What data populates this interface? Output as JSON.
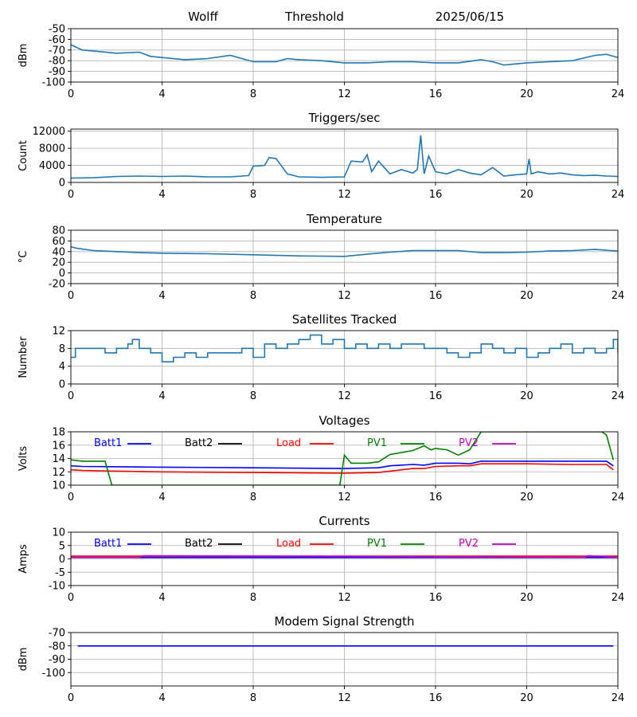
{
  "header": {
    "station": "Wolff",
    "mode": "Threshold",
    "date": "2025/06/15"
  },
  "colors": {
    "default_series": "#1f77b4",
    "batt1": "#0000ff",
    "batt2": "#000000",
    "load": "#ff0000",
    "pv1": "#008000",
    "pv2": "#c000c0",
    "modem": "#0000ff"
  },
  "chart_data": [
    {
      "type": "line",
      "title": "",
      "ylabel": "dBm",
      "xlim": [
        0,
        24
      ],
      "ylim": [
        -100,
        -50
      ],
      "xticks": [
        "0",
        "4",
        "8",
        "12",
        "16",
        "20",
        "24"
      ],
      "yticks": [
        "-50",
        "-60",
        "-70",
        "-80",
        "-90",
        "-100"
      ],
      "grid": true,
      "series": [
        {
          "color": "#1f77b4",
          "x": [
            0,
            0.5,
            1,
            2,
            3,
            3.5,
            4,
            5,
            6,
            7,
            7.5,
            8,
            9,
            9.5,
            10,
            11,
            12,
            13,
            14,
            15,
            16,
            17,
            18,
            18.5,
            19,
            20,
            21,
            22,
            23,
            23.5,
            24
          ],
          "y": [
            -65,
            -70,
            -71,
            -73,
            -72,
            -76,
            -77,
            -79,
            -78,
            -75,
            -78,
            -81,
            -81,
            -78,
            -79,
            -80,
            -82,
            -82,
            -81,
            -81,
            -82,
            -82,
            -79,
            -81,
            -84,
            -82,
            -81,
            -80,
            -75,
            -74,
            -77
          ]
        }
      ]
    },
    {
      "type": "line",
      "title": "Triggers/sec",
      "ylabel": "Count",
      "xlim": [
        0,
        24
      ],
      "ylim": [
        0,
        12500
      ],
      "xticks": [
        "0",
        "4",
        "8",
        "12",
        "16",
        "20",
        "24"
      ],
      "yticks": [
        "0",
        "4000",
        "8000",
        "12000"
      ],
      "grid": true,
      "series": [
        {
          "color": "#1f77b4",
          "x": [
            0,
            1,
            2,
            3,
            4,
            5,
            6,
            7,
            7.8,
            8,
            8.5,
            8.7,
            9,
            9.5,
            10,
            11,
            12,
            12.3,
            12.8,
            13,
            13.2,
            13.5,
            14,
            14.5,
            15,
            15.2,
            15.35,
            15.5,
            15.7,
            16,
            16.5,
            17,
            17.5,
            18,
            18.5,
            19,
            19.5,
            20,
            20.1,
            20.2,
            20.5,
            21,
            21.5,
            22,
            22.5,
            23,
            23.5,
            24
          ],
          "y": [
            1000,
            1100,
            1400,
            1500,
            1400,
            1500,
            1300,
            1300,
            1600,
            3800,
            4000,
            5800,
            5600,
            2000,
            1300,
            1200,
            1300,
            5000,
            4800,
            6500,
            2500,
            5000,
            2000,
            3000,
            2200,
            3000,
            11000,
            2000,
            6200,
            2500,
            2000,
            3000,
            2200,
            1800,
            3500,
            1500,
            1800,
            2000,
            5500,
            2000,
            2500,
            2000,
            2200,
            1800,
            1600,
            1700,
            1500,
            1400
          ]
        }
      ]
    },
    {
      "type": "line",
      "title": "Temperature",
      "ylabel": "°C",
      "xlim": [
        0,
        24
      ],
      "ylim": [
        -20,
        80
      ],
      "xticks": [
        "0",
        "4",
        "8",
        "12",
        "16",
        "20",
        "24"
      ],
      "yticks": [
        "-20",
        "0",
        "20",
        "40",
        "60",
        "80"
      ],
      "grid": true,
      "series": [
        {
          "color": "#1f77b4",
          "x": [
            0,
            0.3,
            1,
            2,
            3,
            4,
            6,
            8,
            10,
            12,
            13,
            14,
            15,
            16,
            17,
            18,
            19,
            20,
            21,
            22,
            23,
            24
          ],
          "y": [
            49,
            46,
            42,
            40,
            38,
            37,
            36,
            34,
            32,
            31,
            35,
            39,
            42,
            42,
            42,
            38,
            38,
            39,
            41,
            42,
            44,
            41
          ]
        }
      ]
    },
    {
      "type": "line",
      "title": "Satellites Tracked",
      "ylabel": "Number",
      "xlim": [
        0,
        24
      ],
      "ylim": [
        0,
        12
      ],
      "xticks": [
        "0",
        "4",
        "8",
        "12",
        "16",
        "20",
        "24"
      ],
      "yticks": [
        "0",
        "4",
        "8",
        "12"
      ],
      "grid": true,
      "series": [
        {
          "color": "#1f77b4",
          "step": true,
          "x": [
            0,
            0.2,
            1,
            1.5,
            2,
            2.5,
            2.7,
            3,
            3.5,
            4,
            4.5,
            5,
            5.5,
            6,
            7,
            7.5,
            8,
            8.5,
            9,
            9.5,
            10,
            10.5,
            11,
            11.5,
            12,
            12.5,
            13,
            13.5,
            14,
            14.5,
            15,
            15.5,
            16,
            16.5,
            17,
            17.5,
            18,
            18.5,
            19,
            19.5,
            20,
            20.5,
            21,
            21.5,
            22,
            22.5,
            23,
            23.5,
            23.8,
            24
          ],
          "y": [
            6,
            8,
            8,
            7,
            8,
            9,
            10,
            8,
            7,
            5,
            6,
            7,
            6,
            7,
            7,
            8,
            6,
            9,
            8,
            9,
            10,
            11,
            9,
            10,
            8,
            9,
            8,
            9,
            8,
            9,
            9,
            8,
            8,
            7,
            6,
            7,
            9,
            8,
            7,
            8,
            6,
            7,
            8,
            9,
            7,
            8,
            7,
            8,
            10,
            7
          ]
        }
      ]
    },
    {
      "type": "line",
      "title": "Voltages",
      "ylabel": "Volts",
      "xlim": [
        0,
        24
      ],
      "ylim": [
        10,
        18
      ],
      "xticks": [
        "0",
        "4",
        "8",
        "12",
        "16",
        "20",
        "24"
      ],
      "yticks": [
        "10",
        "12",
        "14",
        "16",
        "18"
      ],
      "grid": true,
      "legend": [
        "Batt1",
        "Batt2",
        "Load",
        "PV1",
        "PV2"
      ],
      "series": [
        {
          "name": "Batt1",
          "color": "#0000ff",
          "x": [
            0,
            0.5,
            4,
            8,
            12,
            13.5,
            14,
            15,
            15.5,
            16,
            17,
            17.5,
            18,
            20,
            22,
            23.5,
            23.8
          ],
          "y": [
            12.9,
            12.8,
            12.7,
            12.6,
            12.5,
            12.6,
            12.9,
            13.1,
            13.0,
            13.3,
            13.3,
            13.2,
            13.6,
            13.6,
            13.6,
            13.6,
            12.9
          ]
        },
        {
          "name": "Load",
          "color": "#ff0000",
          "x": [
            0,
            0.5,
            4,
            8,
            12,
            13.5,
            14,
            15,
            15.5,
            16,
            17,
            17.5,
            18,
            20,
            22,
            23.5,
            23.8
          ],
          "y": [
            12.3,
            12.2,
            12.0,
            11.9,
            11.8,
            11.9,
            12.1,
            12.5,
            12.5,
            12.8,
            12.9,
            12.9,
            13.2,
            13.2,
            13.1,
            13.1,
            12.3
          ]
        },
        {
          "name": "PV1",
          "color": "#008000",
          "x": [
            0,
            0.5,
            1.5,
            1.8,
            11.8,
            12,
            12.3,
            13,
            13.5,
            14,
            15,
            15.5,
            15.8,
            16,
            16.5,
            17,
            17.5,
            18,
            23.3,
            23.5,
            23.8
          ],
          "y": [
            13.8,
            13.6,
            13.6,
            10,
            10,
            14.5,
            13.3,
            13.3,
            13.5,
            14.6,
            15.2,
            15.9,
            15.3,
            15.5,
            15.3,
            14.5,
            15.3,
            18,
            18,
            17.5,
            13.8
          ]
        }
      ]
    },
    {
      "type": "line",
      "title": "Currents",
      "ylabel": "Amps",
      "xlim": [
        0,
        24
      ],
      "ylim": [
        -10,
        10
      ],
      "xticks": [
        "0",
        "4",
        "8",
        "12",
        "16",
        "20",
        "24"
      ],
      "yticks": [
        "-10",
        "-5",
        "0",
        "5",
        "10"
      ],
      "grid": true,
      "legend": [
        "Batt1",
        "Batt2",
        "Load",
        "PV1",
        "PV2"
      ],
      "series": [
        {
          "name": "Load",
          "color": "#ff0000",
          "x": [
            0,
            24
          ],
          "y": [
            1.0,
            1.0
          ]
        },
        {
          "name": "Batt1",
          "color": "#0000ff",
          "x": [
            0,
            24
          ],
          "y": [
            0.5,
            0.5
          ]
        },
        {
          "name": "PV2",
          "color": "#c000c0",
          "x": [
            0,
            3,
            3.2,
            22.5,
            22.7,
            24
          ],
          "y": [
            0.6,
            0.6,
            1.2,
            0.6,
            1.2,
            0.6
          ]
        }
      ]
    },
    {
      "type": "line",
      "title": "Modem Signal Strength",
      "ylabel": "dBm",
      "xlim": [
        0,
        24
      ],
      "ylim": [
        -110,
        -70
      ],
      "xticks": [
        "0",
        "4",
        "8",
        "12",
        "16",
        "20",
        "24"
      ],
      "yticks": [
        "-70",
        "-80",
        "-90",
        "-100"
      ],
      "grid": true,
      "series": [
        {
          "color": "#0000ff",
          "x": [
            0.3,
            23.8
          ],
          "y": [
            -80,
            -80
          ]
        }
      ]
    }
  ]
}
